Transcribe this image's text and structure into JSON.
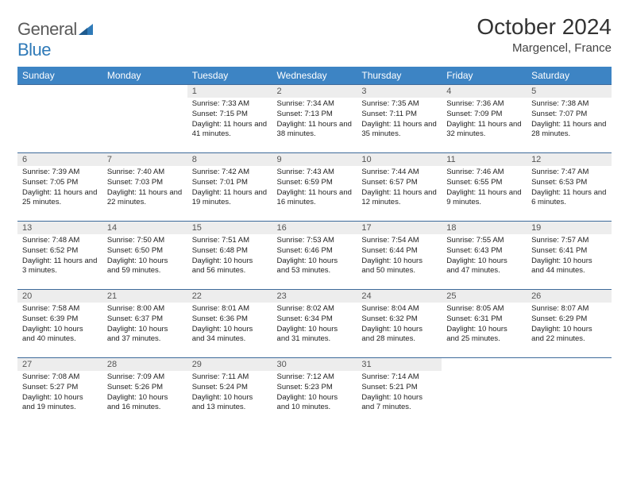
{
  "brand": {
    "part1": "General",
    "part2": "Blue"
  },
  "title": "October 2024",
  "location": "Margencel, France",
  "colors": {
    "header_bg": "#3d84c4",
    "header_text": "#ffffff",
    "divider": "#3d6a9a",
    "daynum_bg": "#ededed",
    "body_text": "#222222",
    "brand_grey": "#5a5a5a",
    "brand_blue": "#2f7ab8"
  },
  "weekdays": [
    "Sunday",
    "Monday",
    "Tuesday",
    "Wednesday",
    "Thursday",
    "Friday",
    "Saturday"
  ],
  "weeks": [
    [
      null,
      null,
      {
        "n": "1",
        "sr": "7:33 AM",
        "ss": "7:15 PM",
        "dl": "11 hours and 41 minutes."
      },
      {
        "n": "2",
        "sr": "7:34 AM",
        "ss": "7:13 PM",
        "dl": "11 hours and 38 minutes."
      },
      {
        "n": "3",
        "sr": "7:35 AM",
        "ss": "7:11 PM",
        "dl": "11 hours and 35 minutes."
      },
      {
        "n": "4",
        "sr": "7:36 AM",
        "ss": "7:09 PM",
        "dl": "11 hours and 32 minutes."
      },
      {
        "n": "5",
        "sr": "7:38 AM",
        "ss": "7:07 PM",
        "dl": "11 hours and 28 minutes."
      }
    ],
    [
      {
        "n": "6",
        "sr": "7:39 AM",
        "ss": "7:05 PM",
        "dl": "11 hours and 25 minutes."
      },
      {
        "n": "7",
        "sr": "7:40 AM",
        "ss": "7:03 PM",
        "dl": "11 hours and 22 minutes."
      },
      {
        "n": "8",
        "sr": "7:42 AM",
        "ss": "7:01 PM",
        "dl": "11 hours and 19 minutes."
      },
      {
        "n": "9",
        "sr": "7:43 AM",
        "ss": "6:59 PM",
        "dl": "11 hours and 16 minutes."
      },
      {
        "n": "10",
        "sr": "7:44 AM",
        "ss": "6:57 PM",
        "dl": "11 hours and 12 minutes."
      },
      {
        "n": "11",
        "sr": "7:46 AM",
        "ss": "6:55 PM",
        "dl": "11 hours and 9 minutes."
      },
      {
        "n": "12",
        "sr": "7:47 AM",
        "ss": "6:53 PM",
        "dl": "11 hours and 6 minutes."
      }
    ],
    [
      {
        "n": "13",
        "sr": "7:48 AM",
        "ss": "6:52 PM",
        "dl": "11 hours and 3 minutes."
      },
      {
        "n": "14",
        "sr": "7:50 AM",
        "ss": "6:50 PM",
        "dl": "10 hours and 59 minutes."
      },
      {
        "n": "15",
        "sr": "7:51 AM",
        "ss": "6:48 PM",
        "dl": "10 hours and 56 minutes."
      },
      {
        "n": "16",
        "sr": "7:53 AM",
        "ss": "6:46 PM",
        "dl": "10 hours and 53 minutes."
      },
      {
        "n": "17",
        "sr": "7:54 AM",
        "ss": "6:44 PM",
        "dl": "10 hours and 50 minutes."
      },
      {
        "n": "18",
        "sr": "7:55 AM",
        "ss": "6:43 PM",
        "dl": "10 hours and 47 minutes."
      },
      {
        "n": "19",
        "sr": "7:57 AM",
        "ss": "6:41 PM",
        "dl": "10 hours and 44 minutes."
      }
    ],
    [
      {
        "n": "20",
        "sr": "7:58 AM",
        "ss": "6:39 PM",
        "dl": "10 hours and 40 minutes."
      },
      {
        "n": "21",
        "sr": "8:00 AM",
        "ss": "6:37 PM",
        "dl": "10 hours and 37 minutes."
      },
      {
        "n": "22",
        "sr": "8:01 AM",
        "ss": "6:36 PM",
        "dl": "10 hours and 34 minutes."
      },
      {
        "n": "23",
        "sr": "8:02 AM",
        "ss": "6:34 PM",
        "dl": "10 hours and 31 minutes."
      },
      {
        "n": "24",
        "sr": "8:04 AM",
        "ss": "6:32 PM",
        "dl": "10 hours and 28 minutes."
      },
      {
        "n": "25",
        "sr": "8:05 AM",
        "ss": "6:31 PM",
        "dl": "10 hours and 25 minutes."
      },
      {
        "n": "26",
        "sr": "8:07 AM",
        "ss": "6:29 PM",
        "dl": "10 hours and 22 minutes."
      }
    ],
    [
      {
        "n": "27",
        "sr": "7:08 AM",
        "ss": "5:27 PM",
        "dl": "10 hours and 19 minutes."
      },
      {
        "n": "28",
        "sr": "7:09 AM",
        "ss": "5:26 PM",
        "dl": "10 hours and 16 minutes."
      },
      {
        "n": "29",
        "sr": "7:11 AM",
        "ss": "5:24 PM",
        "dl": "10 hours and 13 minutes."
      },
      {
        "n": "30",
        "sr": "7:12 AM",
        "ss": "5:23 PM",
        "dl": "10 hours and 10 minutes."
      },
      {
        "n": "31",
        "sr": "7:14 AM",
        "ss": "5:21 PM",
        "dl": "10 hours and 7 minutes."
      },
      null,
      null
    ]
  ],
  "labels": {
    "sunrise": "Sunrise: ",
    "sunset": "Sunset: ",
    "daylight": "Daylight: "
  }
}
